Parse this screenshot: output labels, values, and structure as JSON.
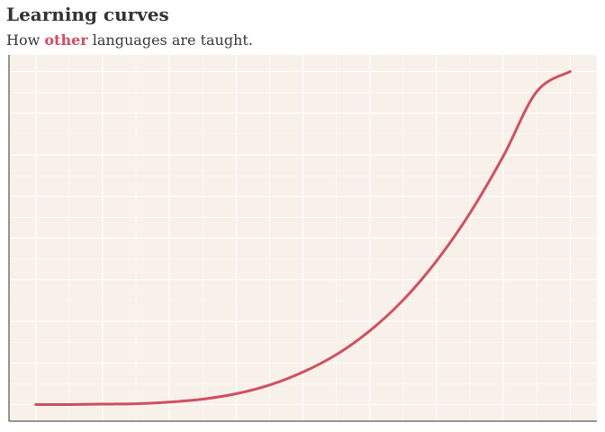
{
  "title": "Learning curves",
  "subtitle": {
    "before": "How ",
    "highlight": "other",
    "after": " languages are taught."
  },
  "colors": {
    "accent": "#d1505f",
    "panel_background": "#f8f1ea",
    "grid": "#ffffff",
    "axis": "#333333",
    "text": "#333333"
  },
  "chart_data": {
    "type": "line",
    "title": "Learning curves",
    "subtitle": "How other languages are taught.",
    "xlabel": "",
    "ylabel": "",
    "grid": true,
    "legend": "none",
    "xlim": [
      -0.4,
      8.4
    ],
    "ylim": [
      -0.4,
      8.4
    ],
    "series": [
      {
        "x": [
          0,
          0.5,
          1,
          1.5,
          2,
          2.5,
          3,
          3.5,
          4,
          4.5,
          5,
          5.5,
          6,
          6.5,
          7,
          7.5,
          8
        ],
        "y": [
          0,
          0,
          0.01,
          0.02,
          0.06,
          0.13,
          0.26,
          0.47,
          0.78,
          1.2,
          1.77,
          2.51,
          3.45,
          4.6,
          5.97,
          7.52,
          8.0
        ],
        "color": "#d1505f"
      }
    ]
  }
}
